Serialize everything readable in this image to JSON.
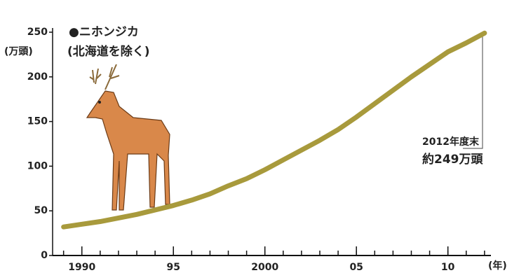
{
  "chart_data": {
    "type": "line",
    "title": "●ニホンジカ",
    "subtitle": "(北海道を除く)",
    "y_label": "(万頭)",
    "x_label": "(年)",
    "x": [
      1989,
      1990,
      1991,
      1992,
      1993,
      1994,
      1995,
      1996,
      1997,
      1998,
      1999,
      2000,
      2001,
      2002,
      2003,
      2004,
      2005,
      2006,
      2007,
      2008,
      2009,
      2010,
      2011,
      2012
    ],
    "series": [
      {
        "name": "ニホンジカ",
        "color": "#a89a3c",
        "values": [
          32,
          35,
          38,
          42,
          46,
          51,
          56,
          62,
          69,
          78,
          86,
          96,
          107,
          118,
          129,
          141,
          155,
          170,
          185,
          200,
          214,
          228,
          238,
          249
        ]
      }
    ],
    "xlim": [
      1988.4,
      2012.35
    ],
    "xticks": [
      1990,
      {
        "value": 1995,
        "label": "95"
      },
      2000,
      {
        "value": 2005,
        "label": "05"
      },
      {
        "value": 2010,
        "label": "10"
      }
    ],
    "ylim": [
      0,
      250
    ],
    "yticks": [
      0,
      50,
      100,
      150,
      200,
      250
    ],
    "annotations": [
      "2012年度末",
      "約249万頭"
    ]
  }
}
